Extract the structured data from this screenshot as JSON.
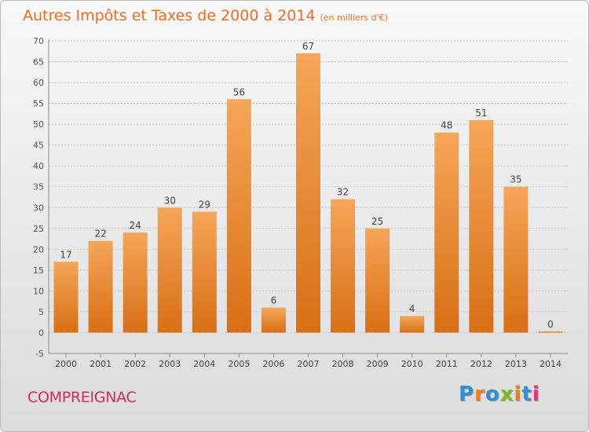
{
  "title": "Autres Impôts et Taxes de 2000 à 2014",
  "unit_note": "(en milliers d'€)",
  "commune": "COMPREIGNAC",
  "logo": {
    "text": "Proxiti",
    "letter_colors": [
      "#2f8fd6",
      "#f07e1a",
      "#2f8fd6",
      "#7ab929",
      "#f07e1a",
      "#2f8fd6",
      "#e8317a"
    ]
  },
  "colors": {
    "title": "#f26a1f",
    "commune": "#d42a5f",
    "bar_top": "#f5a659",
    "bar_bottom": "#d86f14",
    "grid": "#c8c8c8"
  },
  "chart_data": {
    "type": "bar",
    "categories": [
      "2000",
      "2001",
      "2002",
      "2003",
      "2004",
      "2005",
      "2006",
      "2007",
      "2008",
      "2009",
      "2010",
      "2011",
      "2012",
      "2013",
      "2014"
    ],
    "values": [
      17,
      22,
      24,
      30,
      29,
      56,
      6,
      67,
      32,
      25,
      4,
      48,
      51,
      35,
      0
    ],
    "ylim": [
      -5,
      70
    ],
    "yticks": [
      -5,
      0,
      5,
      10,
      15,
      20,
      25,
      30,
      35,
      40,
      45,
      50,
      55,
      60,
      65,
      70
    ],
    "grid": "horizontal dashed",
    "title": "Autres Impôts et Taxes de 2000 à 2014",
    "ylabel": "(en milliers d'€)",
    "xlabel": ""
  }
}
